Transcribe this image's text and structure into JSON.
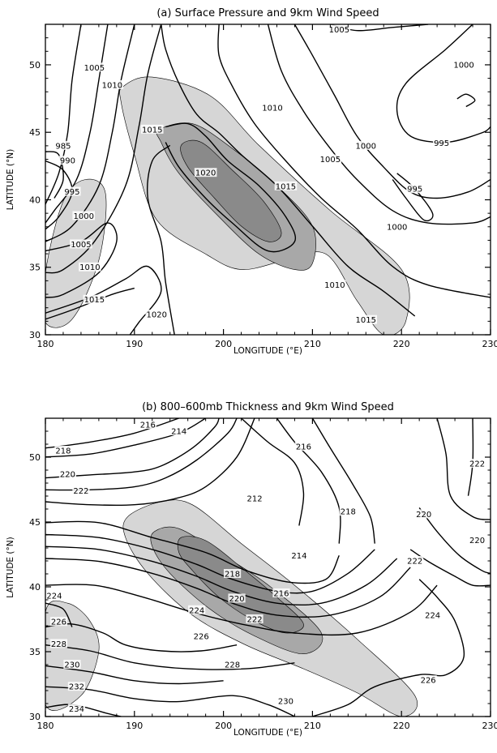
{
  "chart_data": [
    {
      "type": "contour",
      "title": "(a) Surface Pressure and 9km Wind Speed",
      "xlabel": "LONGITUDE (°E)",
      "ylabel": "LATITUDE (°N)",
      "xlim": [
        180,
        230
      ],
      "ylim": [
        30,
        53
      ],
      "xticks": [
        180,
        190,
        200,
        210,
        220,
        230
      ],
      "yticks": [
        30,
        35,
        40,
        45,
        50
      ],
      "shading": {
        "variable": "9km wind speed",
        "levels": 3,
        "colors": [
          "#d6d6d6",
          "#a8a8a8",
          "#8a8a8a"
        ]
      },
      "contour_labels": [
        {
          "text": "1005",
          "lon": 185.5,
          "lat": 49.8
        },
        {
          "text": "1010",
          "lon": 187.5,
          "lat": 48.5
        },
        {
          "text": "985",
          "lon": 182.0,
          "lat": 44.0
        },
        {
          "text": "990",
          "lon": 182.5,
          "lat": 42.9
        },
        {
          "text": "995",
          "lon": 183.0,
          "lat": 40.6
        },
        {
          "text": "1000",
          "lon": 184.3,
          "lat": 38.8
        },
        {
          "text": "1005",
          "lon": 184.0,
          "lat": 36.7
        },
        {
          "text": "1010",
          "lon": 185.0,
          "lat": 35.0
        },
        {
          "text": "1015",
          "lon": 185.5,
          "lat": 32.6
        },
        {
          "text": "1015",
          "lon": 192.0,
          "lat": 45.2
        },
        {
          "text": "1020",
          "lon": 198.0,
          "lat": 42.0
        },
        {
          "text": "1015",
          "lon": 207.0,
          "lat": 41.0
        },
        {
          "text": "1020",
          "lon": 192.5,
          "lat": 31.5
        },
        {
          "text": "1010",
          "lon": 205.5,
          "lat": 46.8
        },
        {
          "text": "1005",
          "lon": 212.0,
          "lat": 43.0
        },
        {
          "text": "1000",
          "lon": 216.0,
          "lat": 44.0
        },
        {
          "text": "1005",
          "lon": 213.0,
          "lat": 52.6
        },
        {
          "text": "1000",
          "lon": 227.0,
          "lat": 50.0
        },
        {
          "text": "995",
          "lon": 224.5,
          "lat": 44.2
        },
        {
          "text": "995",
          "lon": 221.5,
          "lat": 40.8
        },
        {
          "text": "1000",
          "lon": 219.5,
          "lat": 38.0
        },
        {
          "text": "1010",
          "lon": 212.5,
          "lat": 33.7
        },
        {
          "text": "1015",
          "lon": 216.0,
          "lat": 31.1
        }
      ]
    },
    {
      "type": "contour",
      "title": "(b) 800–600mb Thickness and 9km Wind Speed",
      "xlabel": "LONGITUDE (°E)",
      "ylabel": "LATITUDE (°N)",
      "xlim": [
        180,
        230
      ],
      "ylim": [
        30,
        53
      ],
      "xticks": [
        180,
        190,
        200,
        210,
        220,
        230
      ],
      "yticks": [
        30,
        35,
        40,
        45,
        50
      ],
      "shading": {
        "variable": "9km wind speed",
        "levels": 3,
        "colors": [
          "#d6d6d6",
          "#a8a8a8",
          "#8a8a8a"
        ]
      },
      "contour_labels": [
        {
          "text": "216",
          "lon": 191.5,
          "lat": 52.5
        },
        {
          "text": "214",
          "lon": 195.0,
          "lat": 52.0
        },
        {
          "text": "218",
          "lon": 182.0,
          "lat": 50.5
        },
        {
          "text": "220",
          "lon": 182.5,
          "lat": 48.7
        },
        {
          "text": "222",
          "lon": 184.0,
          "lat": 47.4
        },
        {
          "text": "212",
          "lon": 203.5,
          "lat": 46.8
        },
        {
          "text": "216",
          "lon": 209.0,
          "lat": 50.8
        },
        {
          "text": "218",
          "lon": 214.0,
          "lat": 45.8
        },
        {
          "text": "214",
          "lon": 208.5,
          "lat": 42.4
        },
        {
          "text": "218",
          "lon": 201.0,
          "lat": 41.0
        },
        {
          "text": "216",
          "lon": 206.5,
          "lat": 39.5
        },
        {
          "text": "220",
          "lon": 201.5,
          "lat": 39.1
        },
        {
          "text": "224",
          "lon": 197.0,
          "lat": 38.2
        },
        {
          "text": "222",
          "lon": 203.5,
          "lat": 37.5
        },
        {
          "text": "226",
          "lon": 197.5,
          "lat": 36.2
        },
        {
          "text": "228",
          "lon": 201.0,
          "lat": 34.0
        },
        {
          "text": "224",
          "lon": 181.0,
          "lat": 39.3
        },
        {
          "text": "226",
          "lon": 181.5,
          "lat": 37.3
        },
        {
          "text": "228",
          "lon": 181.5,
          "lat": 35.6
        },
        {
          "text": "230",
          "lon": 183.0,
          "lat": 34.0
        },
        {
          "text": "232",
          "lon": 183.5,
          "lat": 32.3
        },
        {
          "text": "234",
          "lon": 183.5,
          "lat": 30.6
        },
        {
          "text": "230",
          "lon": 207.0,
          "lat": 31.2
        },
        {
          "text": "222",
          "lon": 228.5,
          "lat": 49.5
        },
        {
          "text": "220",
          "lon": 222.5,
          "lat": 45.6
        },
        {
          "text": "220",
          "lon": 228.5,
          "lat": 43.6
        },
        {
          "text": "222",
          "lon": 221.5,
          "lat": 42.0
        },
        {
          "text": "224",
          "lon": 223.5,
          "lat": 37.8
        },
        {
          "text": "226",
          "lon": 223.0,
          "lat": 32.8
        }
      ]
    }
  ]
}
